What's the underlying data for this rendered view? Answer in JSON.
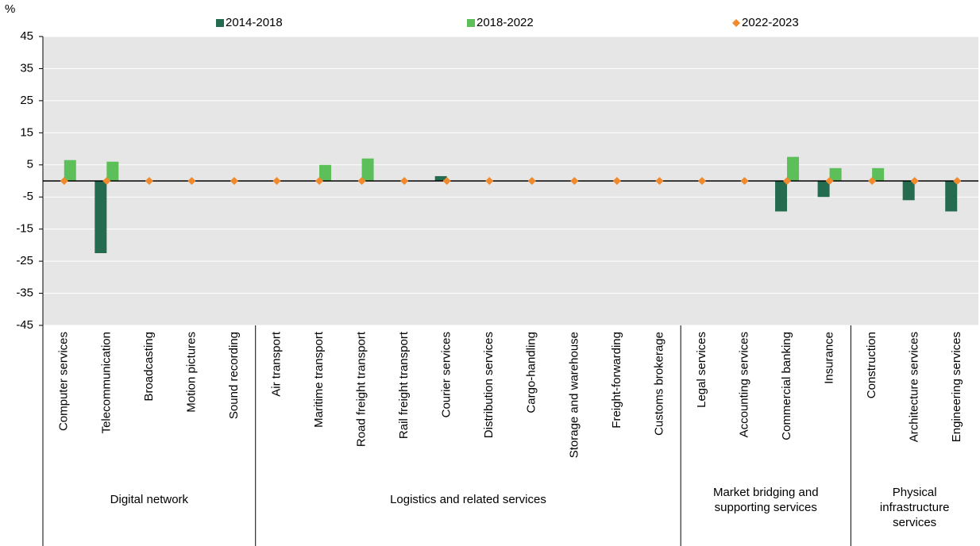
{
  "chart_data": {
    "type": "bar",
    "y_unit": "%",
    "categories": [
      "Computer services",
      "Telecommunication",
      "Broadcasting",
      "Motion pictures",
      "Sound recording",
      "Air transport",
      "Maritime transport",
      "Road freight transport",
      "Rail freight transport",
      "Courier services",
      "Distribution services",
      "Cargo-handling",
      "Storage and warehouse",
      "Freight-forwarding",
      "Customs brokerage",
      "Legal services",
      "Accounting services",
      "Commercial banking",
      "Insurance",
      "Construction",
      "Architecture services",
      "Engineering services"
    ],
    "groups": [
      {
        "label": "Digital network",
        "start": 0,
        "end": 4
      },
      {
        "label": "Logistics and related services",
        "start": 5,
        "end": 14
      },
      {
        "label": "Market bridging and supporting services",
        "start": 15,
        "end": 18
      },
      {
        "label": "Physical infrastructure services",
        "start": 19,
        "end": 21
      }
    ],
    "series": [
      {
        "name": "2014-2018",
        "color": "#246b50",
        "marker": "bar",
        "values": [
          0,
          -22.5,
          0,
          0,
          0,
          0,
          0,
          0,
          0,
          1.5,
          0,
          0,
          0,
          0,
          0,
          0,
          0,
          -9.5,
          -5,
          0,
          -6,
          -9.5
        ]
      },
      {
        "name": "2018-2022",
        "color": "#5cbf5a",
        "marker": "bar",
        "values": [
          6.5,
          6,
          0,
          0,
          0,
          0,
          5,
          7,
          0,
          0,
          0,
          0,
          0,
          0,
          0,
          0,
          0,
          7.5,
          4,
          4,
          0,
          0
        ]
      },
      {
        "name": "2022-2023",
        "color": "#f08a2c",
        "marker": "diamond",
        "values": [
          0,
          0,
          0,
          0,
          0,
          0,
          0,
          0,
          0,
          0,
          0,
          0,
          0,
          0,
          0,
          0,
          0,
          0,
          0,
          0,
          0,
          0
        ]
      }
    ],
    "ylim": [
      -45,
      45
    ],
    "yticks": [
      -45,
      -35,
      -25,
      -15,
      -5,
      5,
      15,
      25,
      35,
      45
    ],
    "grid": true
  }
}
